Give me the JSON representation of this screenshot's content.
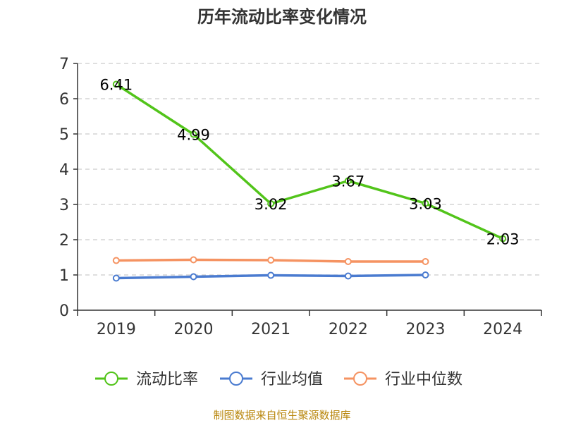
{
  "chart_data": {
    "type": "line",
    "title": "历年流动比率变化情况",
    "categories": [
      "2019",
      "2020",
      "2021",
      "2022",
      "2023",
      "2024"
    ],
    "ylim": [
      0,
      7
    ],
    "yticks": [
      0,
      1,
      2,
      3,
      4,
      5,
      6,
      7
    ],
    "grid": true,
    "legend_position": "bottom",
    "series": [
      {
        "name": "流动比率",
        "color": "#52c41a",
        "values": [
          6.41,
          4.99,
          3.02,
          3.67,
          3.03,
          2.03
        ],
        "labels": [
          "6.41",
          "4.99",
          "3.02",
          "3.67",
          "3.03",
          "2.03"
        ]
      },
      {
        "name": "行业均值",
        "color": "#4a7bd0",
        "values": [
          0.91,
          0.95,
          0.99,
          0.97,
          1.0,
          null
        ]
      },
      {
        "name": "行业中位数",
        "color": "#f59362",
        "values": [
          1.41,
          1.43,
          1.42,
          1.38,
          1.38,
          null
        ]
      }
    ]
  },
  "source_text": "制图数据来自恒生聚源数据库"
}
